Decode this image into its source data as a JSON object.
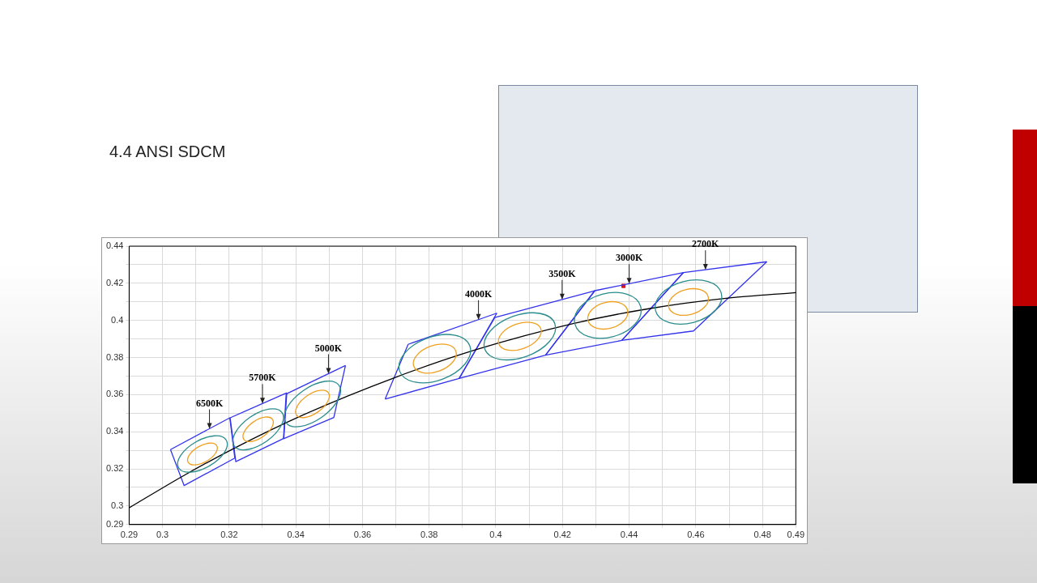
{
  "chart_data": {
    "type": "line",
    "title": "4.4  ANSI SDCM",
    "xlim": [
      0.29,
      0.49
    ],
    "ylim": [
      0.29,
      0.44
    ],
    "xticks": [
      0.29,
      0.3,
      {
        "value": 0.31,
        "label": null
      },
      0.32,
      {
        "value": 0.33,
        "label": null
      },
      0.34,
      {
        "value": 0.35,
        "label": null
      },
      0.36,
      {
        "value": 0.37,
        "label": null
      },
      0.38,
      {
        "value": 0.39,
        "label": null
      },
      0.4,
      {
        "value": 0.41,
        "label": null
      },
      0.42,
      {
        "value": 0.43,
        "label": null
      },
      0.44,
      {
        "value": 0.45,
        "label": null
      },
      0.46,
      {
        "value": 0.47,
        "label": null
      },
      0.48,
      0.49
    ],
    "yticks": [
      0.29,
      0.3,
      {
        "value": 0.31,
        "label": null
      },
      0.32,
      {
        "value": 0.33,
        "label": null
      },
      0.34,
      {
        "value": 0.35,
        "label": null
      },
      0.36,
      {
        "value": 0.37,
        "label": null
      },
      0.38,
      {
        "value": 0.39,
        "label": null
      },
      0.4,
      {
        "value": 0.41,
        "label": null
      },
      0.42,
      {
        "value": 0.43,
        "label": null
      },
      0.44
    ],
    "grid": true,
    "legend": false,
    "marker": "none",
    "series": [
      {
        "color": "#000000",
        "x": [
          0.29,
          0.306,
          0.3214,
          0.3425,
          0.3697,
          0.394,
          0.4232,
          0.4459,
          0.4702,
          0.49
        ],
        "values": [
          0.299,
          0.316,
          0.331,
          0.3493,
          0.3692,
          0.3842,
          0.3983,
          0.4063,
          0.4121,
          0.415
        ]
      },
      {
        "color": "#3333ee",
        "x": [
          0.3024,
          0.3202,
          0.3217
        ],
        "values": [
          0.3304,
          0.3475,
          0.3258
        ]
      },
      {
        "color": "#3333ee",
        "x": [
          0.3024,
          0.3065,
          0.3217
        ],
        "values": [
          0.3304,
          0.311,
          0.3258
        ]
      },
      {
        "color": "#3333ee",
        "x": [
          0.3203,
          0.3373
        ],
        "values": [
          0.3475,
          0.361
        ]
      },
      {
        "color": "#3333ee",
        "x": [
          0.3203,
          0.322,
          0.3364,
          0.3373
        ],
        "values": [
          0.3475,
          0.3239,
          0.3364,
          0.361
        ]
      },
      {
        "color": "#3333ee",
        "x": [
          0.3363,
          0.3371,
          0.3549
        ],
        "values": [
          0.3362,
          0.3603,
          0.3757
        ]
      },
      {
        "color": "#3333ee",
        "x": [
          0.3363,
          0.3514,
          0.3549
        ],
        "values": [
          0.3362,
          0.3477,
          0.3757
        ]
      },
      {
        "color": "#3333ee",
        "x": [
          0.3668,
          0.3737,
          0.4003
        ],
        "values": [
          0.3576,
          0.3871,
          0.4039
        ]
      },
      {
        "color": "#3333ee",
        "x": [
          0.3668,
          0.389,
          0.4003
        ],
        "values": [
          0.3576,
          0.3687,
          0.4039
        ]
      },
      {
        "color": "#3333ee",
        "x": [
          0.389,
          0.3997,
          0.4297
        ],
        "values": [
          0.3687,
          0.4015,
          0.416
        ]
      },
      {
        "color": "#3333ee",
        "x": [
          0.389,
          0.4149,
          0.4297
        ],
        "values": [
          0.3687,
          0.3813,
          0.416
        ]
      },
      {
        "color": "#3333ee",
        "x": [
          0.4149,
          0.4297,
          0.4563
        ],
        "values": [
          0.3813,
          0.416,
          0.4258
        ]
      },
      {
        "color": "#3333ee",
        "x": [
          0.4149,
          0.4378,
          0.4563
        ],
        "values": [
          0.3813,
          0.3892,
          0.4258
        ]
      },
      {
        "color": "#3333ee",
        "x": [
          0.4378,
          0.4563,
          0.4813
        ],
        "values": [
          0.3892,
          0.4258,
          0.4316
        ]
      },
      {
        "color": "#3333ee",
        "x": [
          0.4378,
          0.4593,
          0.4813
        ],
        "values": [
          0.3892,
          0.3943,
          0.4316
        ]
      },
      {
        "type": "scatter",
        "marker": "square",
        "color": "#e01020",
        "x": [
          0.4383
        ],
        "values": [
          0.4186
        ]
      }
    ],
    "annotations": [
      {
        "text": "6500K",
        "x": 0.3141,
        "y": 0.3416
      },
      {
        "text": "5700K",
        "x": 0.33,
        "y": 0.3552
      },
      {
        "text": "5000K",
        "x": 0.3498,
        "y": 0.3713
      },
      {
        "text": "4000K",
        "x": 0.3948,
        "y": 0.4004
      },
      {
        "text": "3500K",
        "x": 0.4199,
        "y": 0.4113
      },
      {
        "text": "3000K",
        "x": 0.44,
        "y": 0.4198
      },
      {
        "text": "2700K",
        "x": 0.4629,
        "y": 0.4273
      }
    ]
  }
}
